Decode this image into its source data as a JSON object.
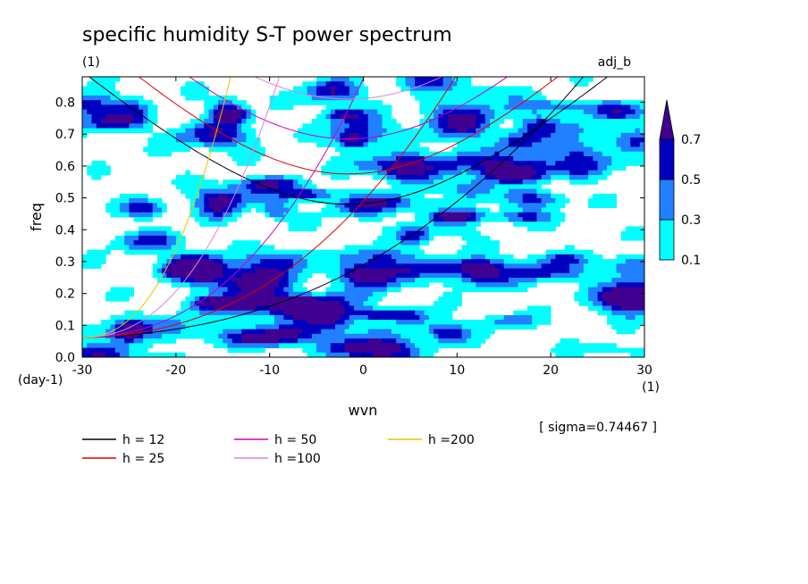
{
  "chart_data": {
    "type": "heatmap",
    "title": "specific humidity S-T power spectrum",
    "subtitle_left": "(1)",
    "subtitle_right": "adj_b",
    "xlabel": "wvn",
    "ylabel": "freq",
    "x_unit": "(1)",
    "y_unit": "(day-1)",
    "xlim": [
      -30,
      30
    ],
    "ylim": [
      0,
      0.88
    ],
    "x_ticks": [
      -30,
      -20,
      -10,
      0,
      10,
      20,
      30
    ],
    "x_tick_labels": [
      "-30",
      "-20",
      "-10",
      "0",
      "10",
      "20",
      "30"
    ],
    "y_ticks": [
      0,
      0.1,
      0.2,
      0.3,
      0.4,
      0.5,
      0.6,
      0.7,
      0.8
    ],
    "y_tick_labels": [
      "0.0",
      "0.1",
      "0.2",
      "0.3",
      "0.4",
      "0.5",
      "0.6",
      "0.7",
      "0.8"
    ],
    "colorbar": {
      "levels": [
        0.1,
        0.3,
        0.5,
        0.7
      ],
      "labels": [
        "0.1",
        "0.3",
        "0.5",
        "0.7"
      ],
      "colors": [
        "#00ffff",
        "#2080ff",
        "#0000c0",
        "#400090"
      ]
    },
    "annotation": "[ sigma=0.74467 ]",
    "dispersion_curves": [
      {
        "name": "h = 12",
        "h": 12,
        "color": "#000000",
        "label": "h = 12"
      },
      {
        "name": "h = 25",
        "h": 25,
        "color": "#e00000",
        "label": "h = 25"
      },
      {
        "name": "h = 50",
        "h": 50,
        "color": "#d000c0",
        "label": "h = 50"
      },
      {
        "name": "h = 100",
        "h": 100,
        "color": "#e080e0",
        "label": "h =100"
      },
      {
        "name": "h = 200",
        "h": 200,
        "color": "#f0c000",
        "label": "h =200"
      }
    ]
  }
}
